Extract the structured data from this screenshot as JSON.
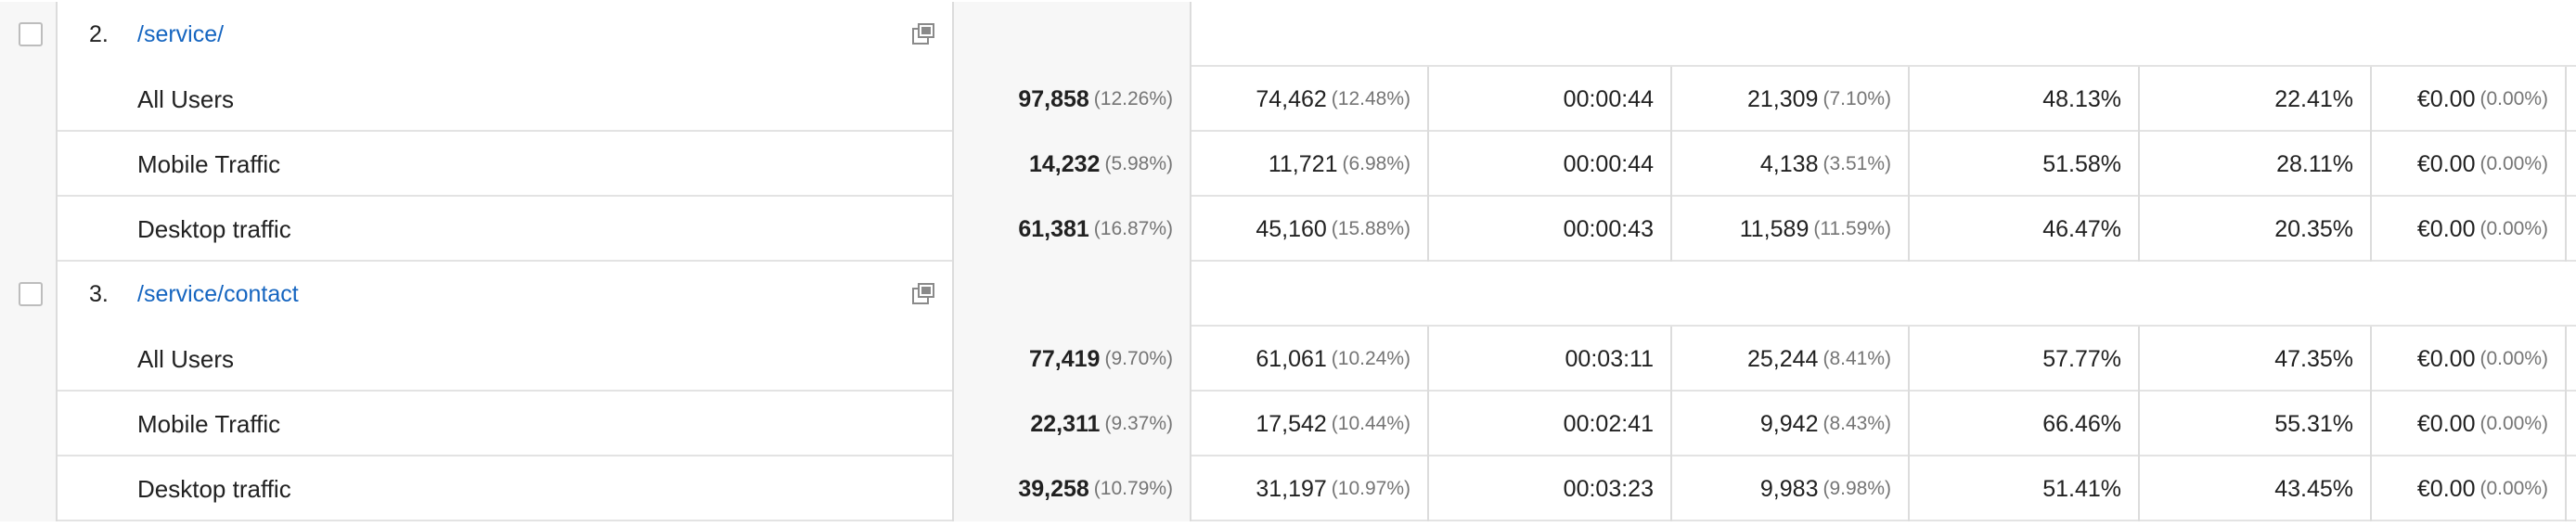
{
  "pages": [
    {
      "rank": "2.",
      "path": "/service/",
      "segments": [
        {
          "label": "All Users",
          "metrics": [
            {
              "value": "97,858",
              "pct": "(12.26%)"
            },
            {
              "value": "74,462",
              "pct": "(12.48%)"
            },
            {
              "value": "00:00:44",
              "pct": ""
            },
            {
              "value": "21,309",
              "pct": "(7.10%)"
            },
            {
              "value": "48.13%",
              "pct": ""
            },
            {
              "value": "22.41%",
              "pct": ""
            },
            {
              "value": "€0.00",
              "pct": "(0.00%)"
            }
          ]
        },
        {
          "label": "Mobile Traffic",
          "metrics": [
            {
              "value": "14,232",
              "pct": "(5.98%)"
            },
            {
              "value": "11,721",
              "pct": "(6.98%)"
            },
            {
              "value": "00:00:44",
              "pct": ""
            },
            {
              "value": "4,138",
              "pct": "(3.51%)"
            },
            {
              "value": "51.58%",
              "pct": ""
            },
            {
              "value": "28.11%",
              "pct": ""
            },
            {
              "value": "€0.00",
              "pct": "(0.00%)"
            }
          ]
        },
        {
          "label": "Desktop traffic",
          "metrics": [
            {
              "value": "61,381",
              "pct": "(16.87%)"
            },
            {
              "value": "45,160",
              "pct": "(15.88%)"
            },
            {
              "value": "00:00:43",
              "pct": ""
            },
            {
              "value": "11,589",
              "pct": "(11.59%)"
            },
            {
              "value": "46.47%",
              "pct": ""
            },
            {
              "value": "20.35%",
              "pct": ""
            },
            {
              "value": "€0.00",
              "pct": "(0.00%)"
            }
          ]
        }
      ]
    },
    {
      "rank": "3.",
      "path": "/service/contact",
      "segments": [
        {
          "label": "All Users",
          "metrics": [
            {
              "value": "77,419",
              "pct": "(9.70%)"
            },
            {
              "value": "61,061",
              "pct": "(10.24%)"
            },
            {
              "value": "00:03:11",
              "pct": ""
            },
            {
              "value": "25,244",
              "pct": "(8.41%)"
            },
            {
              "value": "57.77%",
              "pct": ""
            },
            {
              "value": "47.35%",
              "pct": ""
            },
            {
              "value": "€0.00",
              "pct": "(0.00%)"
            }
          ]
        },
        {
          "label": "Mobile Traffic",
          "metrics": [
            {
              "value": "22,311",
              "pct": "(9.37%)"
            },
            {
              "value": "17,542",
              "pct": "(10.44%)"
            },
            {
              "value": "00:02:41",
              "pct": ""
            },
            {
              "value": "9,942",
              "pct": "(8.43%)"
            },
            {
              "value": "66.46%",
              "pct": ""
            },
            {
              "value": "55.31%",
              "pct": ""
            },
            {
              "value": "€0.00",
              "pct": "(0.00%)"
            }
          ]
        },
        {
          "label": "Desktop traffic",
          "metrics": [
            {
              "value": "39,258",
              "pct": "(10.79%)"
            },
            {
              "value": "31,197",
              "pct": "(10.97%)"
            },
            {
              "value": "00:03:23",
              "pct": ""
            },
            {
              "value": "9,983",
              "pct": "(9.98%)"
            },
            {
              "value": "51.41%",
              "pct": ""
            },
            {
              "value": "43.45%",
              "pct": ""
            },
            {
              "value": "€0.00",
              "pct": "(0.00%)"
            }
          ]
        }
      ]
    }
  ],
  "icons": {
    "row_checkbox": "checkbox",
    "open_page": "popout-icon"
  },
  "colors": {
    "link": "#1565c0",
    "muted": "#757575",
    "row_shade": "#f7f7f7",
    "grid": "#dcdcdc"
  }
}
